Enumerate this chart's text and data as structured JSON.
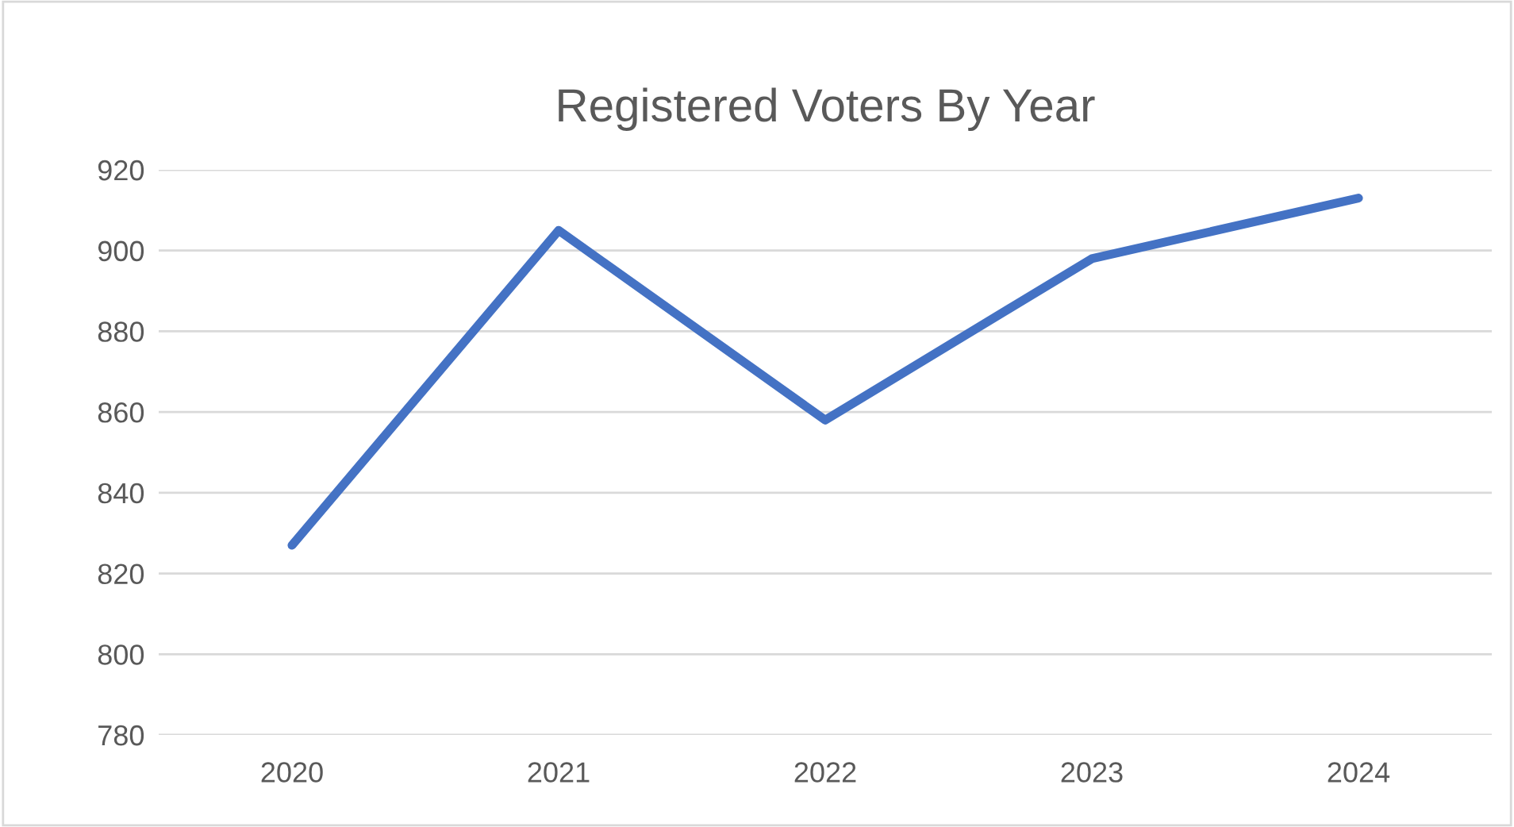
{
  "chart_data": {
    "type": "line",
    "title": "Registered Voters By Year",
    "categories": [
      "2020",
      "2021",
      "2022",
      "2023",
      "2024"
    ],
    "series": [
      {
        "color": "#4472c4",
        "values": [
          827,
          905,
          858,
          898,
          913
        ]
      }
    ],
    "ylim": [
      780,
      920
    ],
    "yticks": [
      780,
      800,
      820,
      840,
      860,
      880,
      900,
      920
    ],
    "grid": "y",
    "marker": "none",
    "line_style": "solid"
  }
}
